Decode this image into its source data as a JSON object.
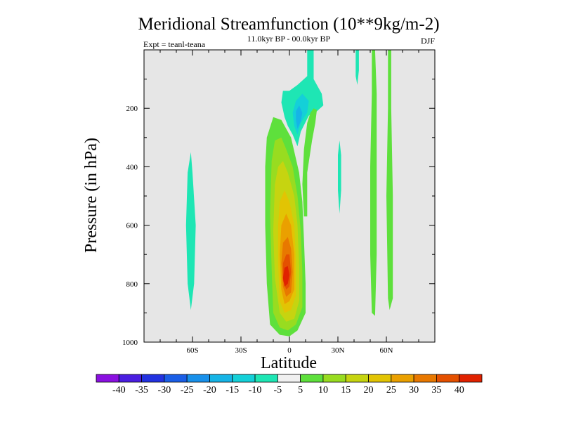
{
  "chart_data": {
    "type": "heatmap",
    "title": "Meridional Streamfunction (10**9kg/m-2)",
    "subtitle": "11.0kyr BP - 00.0kyr BP",
    "left_label": "Expt = teanl-teana",
    "right_label": "DJF",
    "xlabel": "Latitude",
    "ylabel": "Pressure (in hPa)",
    "xlim": [
      -90,
      90
    ],
    "ylim": [
      1000,
      0
    ],
    "x_ticks": [
      {
        "value": -60,
        "label": "60S"
      },
      {
        "value": -30,
        "label": "30S"
      },
      {
        "value": 0,
        "label": "0"
      },
      {
        "value": 30,
        "label": "30N"
      },
      {
        "value": 60,
        "label": "60N"
      }
    ],
    "y_ticks": [
      {
        "value": 200,
        "label": "200"
      },
      {
        "value": 400,
        "label": "400"
      },
      {
        "value": 600,
        "label": "600"
      },
      {
        "value": 800,
        "label": "800"
      },
      {
        "value": 1000,
        "label": "1000"
      }
    ],
    "colorbar": {
      "labels": [
        "-40",
        "-35",
        "-30",
        "-25",
        "-20",
        "-15",
        "-10",
        "-5",
        "5",
        "10",
        "15",
        "20",
        "25",
        "30",
        "35",
        "40"
      ],
      "colors": [
        "#8a10e0",
        "#4a1ee0",
        "#2232e0",
        "#1a5ee6",
        "#1890ea",
        "#16b4e6",
        "#14d0d8",
        "#1ee6b4",
        "#f0f0f0",
        "#5ee03c",
        "#98dc20",
        "#c6d410",
        "#e2c404",
        "#eaa000",
        "#e87800",
        "#e45000",
        "#e02200"
      ]
    },
    "contours": [
      {
        "name": "sh-60-positive-band",
        "level": "-10",
        "color": "#1ee6b4",
        "points": [
          [
            -61,
            350
          ],
          [
            -60,
            420
          ],
          [
            -58,
            600
          ],
          [
            -59,
            800
          ],
          [
            -61,
            890
          ],
          [
            -63,
            800
          ],
          [
            -64,
            600
          ],
          [
            -63,
            420
          ]
        ]
      },
      {
        "name": "equatorial-plus5",
        "level": "5",
        "color": "#5ee03c",
        "points": [
          [
            -10,
            230
          ],
          [
            -5,
            240
          ],
          [
            1,
            300
          ],
          [
            6,
            420
          ],
          [
            8,
            520
          ],
          [
            9,
            650
          ],
          [
            10,
            800
          ],
          [
            10,
            900
          ],
          [
            5,
            960
          ],
          [
            0,
            980
          ],
          [
            -6,
            975
          ],
          [
            -12,
            940
          ],
          [
            -14,
            800
          ],
          [
            -15,
            600
          ],
          [
            -15,
            400
          ],
          [
            -14,
            300
          ]
        ]
      },
      {
        "name": "equatorial-plus10",
        "level": "10",
        "color": "#98dc20",
        "points": [
          [
            -5,
            300
          ],
          [
            -2,
            340
          ],
          [
            2,
            400
          ],
          [
            5,
            500
          ],
          [
            7,
            620
          ],
          [
            8,
            760
          ],
          [
            8,
            880
          ],
          [
            4,
            940
          ],
          [
            -1,
            960
          ],
          [
            -6,
            950
          ],
          [
            -10,
            900
          ],
          [
            -11,
            750
          ],
          [
            -12,
            560
          ],
          [
            -11,
            380
          ],
          [
            -9,
            310
          ]
        ]
      },
      {
        "name": "equatorial-plus15",
        "level": "15",
        "color": "#c6d410",
        "points": [
          [
            -4,
            380
          ],
          [
            -1,
            420
          ],
          [
            3,
            500
          ],
          [
            5,
            600
          ],
          [
            6,
            740
          ],
          [
            6,
            860
          ],
          [
            3,
            920
          ],
          [
            -2,
            930
          ],
          [
            -6,
            900
          ],
          [
            -9,
            780
          ],
          [
            -10,
            620
          ],
          [
            -9,
            460
          ],
          [
            -7,
            400
          ]
        ]
      },
      {
        "name": "equatorial-plus20",
        "level": "20",
        "color": "#e2c404",
        "points": [
          [
            -3,
            480
          ],
          [
            0,
            520
          ],
          [
            3,
            600
          ],
          [
            4,
            720
          ],
          [
            4,
            840
          ],
          [
            1,
            890
          ],
          [
            -3,
            900
          ],
          [
            -6,
            860
          ],
          [
            -7,
            730
          ],
          [
            -7,
            600
          ],
          [
            -6,
            520
          ]
        ]
      },
      {
        "name": "equatorial-plus25",
        "level": "25",
        "color": "#eaa000",
        "points": [
          [
            -2,
            560
          ],
          [
            1,
            600
          ],
          [
            3,
            700
          ],
          [
            3,
            820
          ],
          [
            0,
            860
          ],
          [
            -3,
            870
          ],
          [
            -5,
            820
          ],
          [
            -6,
            700
          ],
          [
            -5,
            600
          ]
        ]
      },
      {
        "name": "equatorial-plus30",
        "level": "30",
        "color": "#e87800",
        "points": [
          [
            -1,
            640
          ],
          [
            1,
            680
          ],
          [
            2,
            760
          ],
          [
            1,
            830
          ],
          [
            -2,
            845
          ],
          [
            -4,
            810
          ],
          [
            -5,
            730
          ],
          [
            -4,
            660
          ]
        ]
      },
      {
        "name": "equatorial-plus35",
        "level": "35",
        "color": "#e45000",
        "points": [
          [
            0,
            700
          ],
          [
            1,
            760
          ],
          [
            0,
            810
          ],
          [
            -2,
            820
          ],
          [
            -4,
            790
          ],
          [
            -4,
            730
          ],
          [
            -2,
            700
          ]
        ]
      },
      {
        "name": "equatorial-plus40",
        "level": "40",
        "color": "#e02200",
        "points": [
          [
            -1,
            740
          ],
          [
            0,
            770
          ],
          [
            -1,
            800
          ],
          [
            -3,
            810
          ],
          [
            -4,
            780
          ],
          [
            -3,
            745
          ]
        ]
      },
      {
        "name": "nh-upper-minus5",
        "level": "-5",
        "color": "#1ee6b4",
        "points": [
          [
            11,
            0
          ],
          [
            15,
            0
          ],
          [
            15,
            100
          ],
          [
            20,
            150
          ],
          [
            21,
            190
          ],
          [
            17,
            210
          ],
          [
            12,
            225
          ],
          [
            7,
            280
          ],
          [
            5,
            330
          ],
          [
            2,
            290
          ],
          [
            -1,
            260
          ],
          [
            -3,
            230
          ],
          [
            -5,
            180
          ],
          [
            -4,
            140
          ],
          [
            0,
            140
          ],
          [
            5,
            120
          ],
          [
            11,
            90
          ]
        ]
      },
      {
        "name": "nh-upper-minus10",
        "level": "-10",
        "color": "#14d0d8",
        "points": [
          [
            8,
            150
          ],
          [
            12,
            175
          ],
          [
            11,
            215
          ],
          [
            7,
            250
          ],
          [
            5,
            290
          ],
          [
            3,
            260
          ],
          [
            2,
            215
          ],
          [
            4,
            175
          ]
        ]
      },
      {
        "name": "nh-upper-minus15",
        "level": "-15",
        "color": "#16b4e6",
        "points": [
          [
            6,
            190
          ],
          [
            8,
            215
          ],
          [
            7,
            245
          ],
          [
            5,
            270
          ],
          [
            4,
            240
          ],
          [
            4,
            210
          ]
        ]
      },
      {
        "name": "nh-15-plus5",
        "level": "5",
        "color": "#5ee03c",
        "points": [
          [
            15,
            200
          ],
          [
            17,
            205
          ],
          [
            16,
            250
          ],
          [
            14,
            310
          ],
          [
            11,
            420
          ],
          [
            11,
            570
          ],
          [
            9,
            570
          ],
          [
            8,
            460
          ],
          [
            9,
            340
          ],
          [
            11,
            250
          ],
          [
            13,
            215
          ]
        ]
      },
      {
        "name": "nh-30-minus5",
        "level": "-5",
        "color": "#1ee6b4",
        "points": [
          [
            31,
            310
          ],
          [
            32,
            360
          ],
          [
            32,
            480
          ],
          [
            31,
            560
          ],
          [
            30,
            480
          ],
          [
            30,
            360
          ]
        ]
      },
      {
        "name": "nh-42-minus5",
        "level": "-5",
        "color": "#1ee6b4",
        "points": [
          [
            41,
            0
          ],
          [
            43,
            0
          ],
          [
            43,
            70
          ],
          [
            42,
            120
          ],
          [
            41,
            90
          ]
        ]
      },
      {
        "name": "nh-52-plus5",
        "level": "5",
        "color": "#5ee03c",
        "points": [
          [
            51,
            0
          ],
          [
            53,
            0
          ],
          [
            54,
            150
          ],
          [
            54,
            400
          ],
          [
            54,
            700
          ],
          [
            53,
            910
          ],
          [
            51,
            900
          ],
          [
            50,
            700
          ],
          [
            50,
            400
          ],
          [
            51,
            150
          ]
        ]
      },
      {
        "name": "nh-62-plus5",
        "level": "5",
        "color": "#5ee03c",
        "points": [
          [
            61,
            0
          ],
          [
            63,
            0
          ],
          [
            63,
            200
          ],
          [
            64,
            500
          ],
          [
            64,
            850
          ],
          [
            62,
            890
          ],
          [
            61,
            850
          ],
          [
            60,
            500
          ],
          [
            61,
            200
          ]
        ]
      }
    ]
  }
}
